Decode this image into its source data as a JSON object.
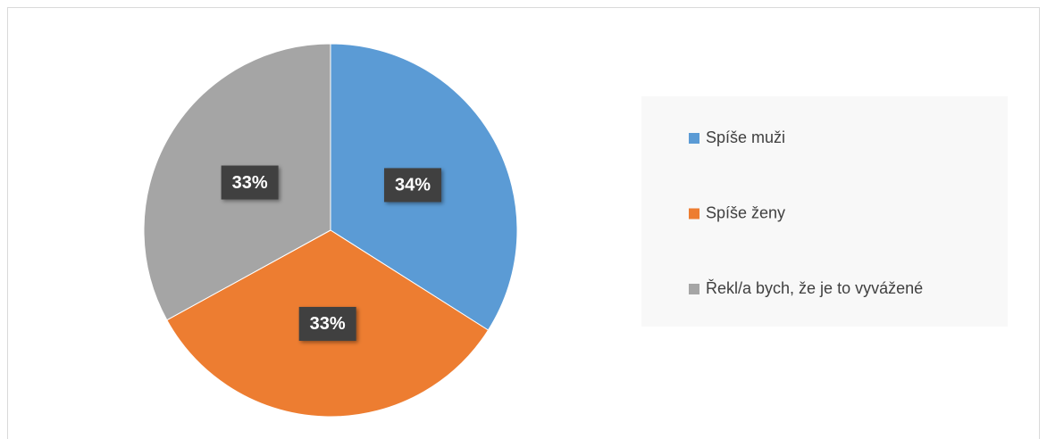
{
  "chart_data": {
    "type": "pie",
    "categories": [
      "Spíše muži",
      "Spíše ženy",
      "Řekl/a bych, že je to vyvážené"
    ],
    "values": [
      34,
      33,
      33
    ],
    "value_labels": [
      "34%",
      "33%",
      "33%"
    ],
    "colors": [
      "#5b9bd5",
      "#ed7d31",
      "#a5a5a5"
    ],
    "legend": "right"
  }
}
